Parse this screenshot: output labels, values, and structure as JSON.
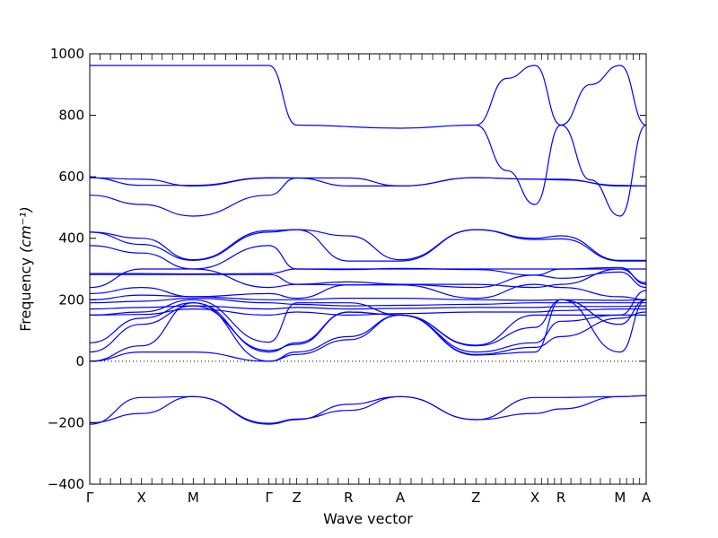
{
  "chart_data": {
    "type": "line",
    "title": "",
    "xlabel": "Wave vector",
    "ylabel": "Frequency",
    "ylabel_unit": "(cm⁻¹)",
    "ylim": [
      -400,
      1000
    ],
    "yticks": [
      -400,
      -200,
      0,
      200,
      400,
      600,
      800,
      1000
    ],
    "grid": false,
    "legend": "none",
    "line_color": "#0000ff",
    "zero_line_style": "dotted",
    "x_range": [
      0,
      1
    ],
    "x_high_symmetry": [
      {
        "label": "Γ",
        "x": 0.0
      },
      {
        "label": "X",
        "x": 0.093
      },
      {
        "label": "M",
        "x": 0.186
      },
      {
        "label": "Γ",
        "x": 0.322
      },
      {
        "label": "Z",
        "x": 0.372
      },
      {
        "label": "R",
        "x": 0.465
      },
      {
        "label": "A",
        "x": 0.558
      },
      {
        "label": "Z",
        "x": 0.694
      },
      {
        "label": "X",
        "x": 0.8
      },
      {
        "label": "R",
        "x": 0.847
      },
      {
        "label": "M",
        "x": 0.953
      },
      {
        "label": "A",
        "x": 1.0
      }
    ],
    "series": [
      {
        "values": [
          [
            0,
            962
          ],
          [
            0.322,
            962
          ],
          [
            0.372,
            768
          ],
          [
            0.558,
            758
          ],
          [
            0.694,
            768
          ],
          [
            0.75,
            920
          ],
          [
            0.8,
            962
          ],
          [
            0.847,
            768
          ],
          [
            0.9,
            900
          ],
          [
            0.953,
            962
          ],
          [
            1.0,
            768
          ]
        ]
      },
      {
        "values": [
          [
            0.694,
            768
          ],
          [
            0.75,
            620
          ],
          [
            0.8,
            510
          ],
          [
            0.847,
            768
          ],
          [
            0.9,
            590
          ],
          [
            0.953,
            472
          ],
          [
            1.0,
            768
          ]
        ]
      },
      {
        "values": [
          [
            0,
            597
          ],
          [
            0.093,
            592
          ],
          [
            0.186,
            570
          ],
          [
            0.322,
            596
          ],
          [
            0.372,
            596
          ],
          [
            0.465,
            570
          ],
          [
            0.558,
            570
          ],
          [
            0.694,
            597
          ],
          [
            0.8,
            592
          ],
          [
            0.847,
            592
          ],
          [
            0.953,
            570
          ],
          [
            1.0,
            570
          ]
        ]
      },
      {
        "values": [
          [
            0,
            597
          ],
          [
            0.093,
            572
          ],
          [
            0.186,
            572
          ],
          [
            0.322,
            597
          ],
          [
            0.372,
            596
          ],
          [
            0.465,
            596
          ],
          [
            0.558,
            570
          ],
          [
            0.694,
            597
          ],
          [
            0.8,
            592
          ],
          [
            0.847,
            590
          ],
          [
            0.953,
            572
          ],
          [
            1.0,
            570
          ]
        ]
      },
      {
        "values": [
          [
            0,
            540
          ],
          [
            0.093,
            510
          ],
          [
            0.186,
            472
          ],
          [
            0.322,
            540
          ],
          [
            0.372,
            596
          ]
        ]
      },
      {
        "values": [
          [
            0,
            420
          ],
          [
            0.093,
            380
          ],
          [
            0.186,
            328
          ],
          [
            0.322,
            420
          ],
          [
            0.372,
            428
          ],
          [
            0.465,
            326
          ],
          [
            0.558,
            326
          ],
          [
            0.694,
            428
          ],
          [
            0.8,
            400
          ],
          [
            0.847,
            408
          ],
          [
            0.953,
            328
          ],
          [
            1.0,
            328
          ]
        ]
      },
      {
        "values": [
          [
            0,
            420
          ],
          [
            0.093,
            400
          ],
          [
            0.186,
            330
          ],
          [
            0.322,
            425
          ],
          [
            0.372,
            428
          ],
          [
            0.465,
            408
          ],
          [
            0.558,
            330
          ],
          [
            0.694,
            428
          ],
          [
            0.8,
            396
          ],
          [
            0.847,
            398
          ],
          [
            0.953,
            326
          ],
          [
            1.0,
            326
          ]
        ]
      },
      {
        "values": [
          [
            0,
            376
          ],
          [
            0.093,
            352
          ],
          [
            0.186,
            300
          ],
          [
            0.322,
            376
          ],
          [
            0.372,
            300
          ],
          [
            0.465,
            300
          ],
          [
            0.558,
            300
          ],
          [
            0.694,
            300
          ],
          [
            0.8,
            300
          ],
          [
            0.847,
            300
          ],
          [
            0.953,
            300
          ],
          [
            1.0,
            300
          ]
        ]
      },
      {
        "values": [
          [
            0,
            285
          ],
          [
            0.093,
            285
          ],
          [
            0.186,
            284
          ],
          [
            0.322,
            285
          ],
          [
            0.372,
            300
          ],
          [
            0.465,
            298
          ],
          [
            0.558,
            302
          ],
          [
            0.694,
            298
          ],
          [
            0.8,
            280
          ],
          [
            0.847,
            300
          ],
          [
            0.953,
            305
          ],
          [
            1.0,
            250
          ]
        ]
      },
      {
        "values": [
          [
            0,
            282
          ],
          [
            0.093,
            282
          ],
          [
            0.186,
            282
          ],
          [
            0.322,
            282
          ],
          [
            0.372,
            250
          ],
          [
            0.465,
            248
          ],
          [
            0.558,
            250
          ],
          [
            0.694,
            250
          ],
          [
            0.8,
            240
          ],
          [
            0.847,
            250
          ],
          [
            0.953,
            300
          ],
          [
            1.0,
            255
          ]
        ]
      },
      {
        "values": [
          [
            0,
            240
          ],
          [
            0.093,
            300
          ],
          [
            0.186,
            300
          ],
          [
            0.322,
            240
          ],
          [
            0.372,
            250
          ],
          [
            0.465,
            258
          ],
          [
            0.558,
            250
          ],
          [
            0.694,
            240
          ],
          [
            0.8,
            280
          ],
          [
            0.847,
            270
          ],
          [
            0.953,
            290
          ],
          [
            1.0,
            240
          ]
        ]
      },
      {
        "values": [
          [
            0,
            220
          ],
          [
            0.093,
            240
          ],
          [
            0.186,
            210
          ],
          [
            0.322,
            220
          ],
          [
            0.372,
            205
          ],
          [
            0.465,
            248
          ],
          [
            0.558,
            248
          ],
          [
            0.694,
            205
          ],
          [
            0.8,
            250
          ],
          [
            0.847,
            240
          ],
          [
            0.953,
            210
          ],
          [
            1.0,
            200
          ]
        ]
      },
      {
        "values": [
          [
            0,
            200
          ],
          [
            0.093,
            215
          ],
          [
            0.186,
            210
          ],
          [
            0.322,
            200
          ],
          [
            0.372,
            200
          ],
          [
            0.465,
            205
          ],
          [
            0.558,
            205
          ],
          [
            0.694,
            200
          ],
          [
            0.8,
            198
          ],
          [
            0.847,
            200
          ],
          [
            0.953,
            198
          ],
          [
            1.0,
            200
          ]
        ]
      },
      {
        "values": [
          [
            0,
            190
          ],
          [
            0.093,
            195
          ],
          [
            0.186,
            205
          ],
          [
            0.322,
            190
          ],
          [
            0.372,
            185
          ],
          [
            0.465,
            180
          ],
          [
            0.558,
            182
          ],
          [
            0.694,
            185
          ],
          [
            0.8,
            190
          ],
          [
            0.847,
            190
          ],
          [
            0.953,
            190
          ],
          [
            1.0,
            190
          ]
        ]
      },
      {
        "values": [
          [
            0,
            170
          ],
          [
            0.093,
            175
          ],
          [
            0.186,
            180
          ],
          [
            0.322,
            170
          ],
          [
            0.372,
            175
          ],
          [
            0.465,
            170
          ],
          [
            0.558,
            172
          ],
          [
            0.694,
            175
          ],
          [
            0.8,
            175
          ],
          [
            0.847,
            178
          ],
          [
            0.953,
            178
          ],
          [
            1.0,
            180
          ]
        ]
      },
      {
        "values": [
          [
            0,
            150
          ],
          [
            0.093,
            152
          ],
          [
            0.186,
            170
          ],
          [
            0.322,
            150
          ],
          [
            0.372,
            160
          ],
          [
            0.465,
            150
          ],
          [
            0.558,
            155
          ],
          [
            0.694,
            160
          ],
          [
            0.8,
            160
          ],
          [
            0.847,
            165
          ],
          [
            0.953,
            170
          ],
          [
            1.0,
            170
          ]
        ]
      },
      {
        "values": [
          [
            0,
            150
          ],
          [
            0.093,
            160
          ],
          [
            0.186,
            200
          ],
          [
            0.322,
            62
          ],
          [
            0.372,
            190
          ],
          [
            0.465,
            190
          ],
          [
            0.558,
            150
          ],
          [
            0.694,
            52
          ],
          [
            0.8,
            150
          ],
          [
            0.847,
            150
          ],
          [
            0.953,
            150
          ],
          [
            1.0,
            150
          ]
        ]
      },
      {
        "values": [
          [
            0,
            60
          ],
          [
            0.093,
            140
          ],
          [
            0.186,
            190
          ],
          [
            0.322,
            30
          ],
          [
            0.372,
            60
          ],
          [
            0.465,
            160
          ],
          [
            0.558,
            150
          ],
          [
            0.694,
            50
          ],
          [
            0.8,
            110
          ],
          [
            0.847,
            200
          ],
          [
            0.953,
            120
          ],
          [
            1.0,
            200
          ]
        ]
      },
      {
        "values": [
          [
            0,
            30
          ],
          [
            0.093,
            120
          ],
          [
            0.186,
            180
          ],
          [
            0.322,
            35
          ],
          [
            0.372,
            55
          ],
          [
            0.465,
            160
          ],
          [
            0.558,
            150
          ],
          [
            0.694,
            30
          ],
          [
            0.8,
            60
          ],
          [
            0.847,
            130
          ],
          [
            0.953,
            150
          ],
          [
            1.0,
            230
          ]
        ]
      },
      {
        "values": [
          [
            0,
            0
          ],
          [
            0.093,
            50
          ],
          [
            0.186,
            190
          ],
          [
            0.322,
            0
          ],
          [
            0.372,
            30
          ],
          [
            0.465,
            80
          ],
          [
            0.558,
            150
          ],
          [
            0.694,
            20
          ],
          [
            0.8,
            30
          ],
          [
            0.847,
            200
          ],
          [
            0.953,
            30
          ],
          [
            1.0,
            200
          ]
        ]
      },
      {
        "values": [
          [
            0,
            0
          ],
          [
            0.093,
            30
          ],
          [
            0.186,
            30
          ],
          [
            0.322,
            0
          ],
          [
            0.372,
            22
          ],
          [
            0.465,
            70
          ],
          [
            0.558,
            150
          ],
          [
            0.694,
            22
          ],
          [
            0.8,
            45
          ],
          [
            0.847,
            80
          ],
          [
            0.953,
            140
          ],
          [
            1.0,
            160
          ]
        ]
      },
      {
        "values": [
          [
            0,
            -200
          ],
          [
            0.093,
            -170
          ],
          [
            0.186,
            -115
          ],
          [
            0.322,
            -202
          ],
          [
            0.372,
            -188
          ],
          [
            0.465,
            -160
          ],
          [
            0.558,
            -115
          ],
          [
            0.694,
            -190
          ],
          [
            0.8,
            -170
          ],
          [
            0.847,
            -155
          ],
          [
            0.953,
            -115
          ],
          [
            1.0,
            -112
          ]
        ]
      },
      {
        "values": [
          [
            0,
            -205
          ],
          [
            0.093,
            -118
          ],
          [
            0.186,
            -115
          ],
          [
            0.322,
            -205
          ],
          [
            0.372,
            -190
          ],
          [
            0.465,
            -140
          ],
          [
            0.558,
            -115
          ],
          [
            0.694,
            -190
          ],
          [
            0.8,
            -118
          ],
          [
            0.847,
            -118
          ],
          [
            0.953,
            -115
          ],
          [
            1.0,
            -112
          ]
        ]
      }
    ]
  }
}
